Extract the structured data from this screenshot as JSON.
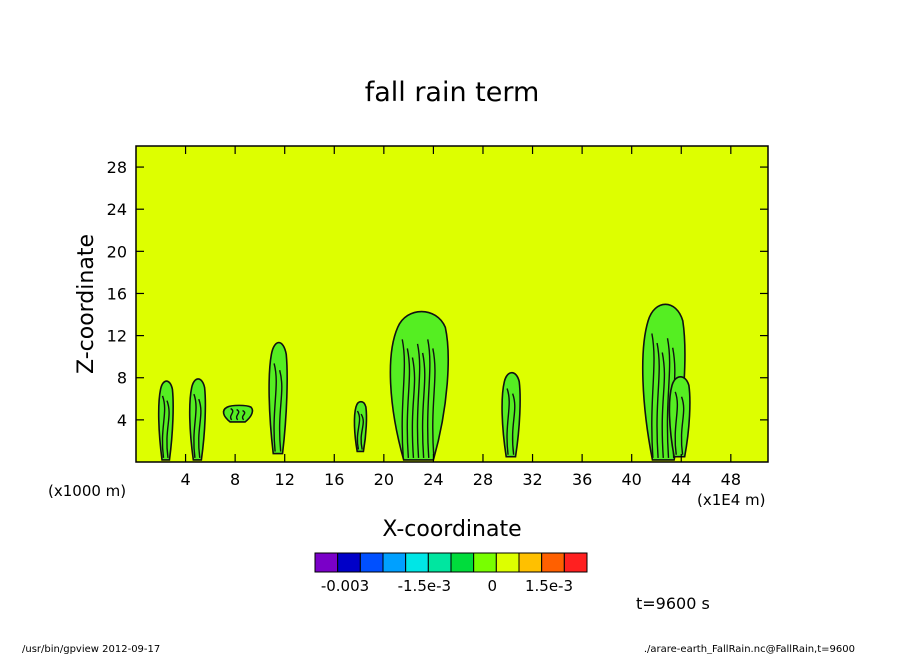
{
  "colors": {
    "plot_background": "#ddff00",
    "contour_fill": "#55ee22",
    "contour_line": "#111111"
  },
  "footer": {
    "left": "/usr/bin/gpview  2012-09-17",
    "right": "./arare-earth_FallRain.nc@FallRain,t=9600"
  },
  "time_label": "t=9600 s",
  "chart_data": {
    "type": "heatmap",
    "title": "fall rain term",
    "xlabel": "X-coordinate",
    "ylabel": "Z-coordinate",
    "x_unit_label": "(x1E4 m)",
    "y_unit_label": "(x1000 m)",
    "xlim": [
      0,
      51
    ],
    "ylim": [
      0,
      30
    ],
    "x_ticks": [
      4,
      8,
      12,
      16,
      20,
      24,
      28,
      32,
      36,
      40,
      44,
      48
    ],
    "y_ticks": [
      4,
      8,
      12,
      16,
      20,
      24,
      28
    ],
    "colorbar": {
      "colors": [
        "#7a00c8",
        "#0000c8",
        "#0050ff",
        "#00a0ff",
        "#00e6e6",
        "#00e6a0",
        "#00dc3c",
        "#78ff00",
        "#ddff00",
        "#ffc000",
        "#ff6000",
        "#ff2020"
      ],
      "labels": [
        "-0.003",
        "-1.5e-3",
        "0",
        "1.5e-3"
      ]
    },
    "regions": [
      {
        "name": "cell-x2",
        "x": [
          1.8,
          3.0
        ],
        "z": [
          0.2,
          7.8
        ]
      },
      {
        "name": "cell-x5",
        "x": [
          4.3,
          5.6
        ],
        "z": [
          0.2,
          8.0
        ]
      },
      {
        "name": "cell-x8",
        "x": [
          7.0,
          9.4
        ],
        "z": [
          3.8,
          5.4
        ]
      },
      {
        "name": "cell-x11",
        "x": [
          10.7,
          12.2
        ],
        "z": [
          0.8,
          11.5
        ]
      },
      {
        "name": "cell-x18",
        "x": [
          17.6,
          18.6
        ],
        "z": [
          1.0,
          5.8
        ]
      },
      {
        "name": "cell-x22",
        "x": [
          20.4,
          25.2
        ],
        "z": [
          0.2,
          14.5
        ]
      },
      {
        "name": "cell-x30",
        "x": [
          29.5,
          31.0
        ],
        "z": [
          0.5,
          8.6
        ]
      },
      {
        "name": "cell-x42",
        "x": [
          40.8,
          44.3
        ],
        "z": [
          0.2,
          15.2
        ]
      },
      {
        "name": "cell-x44",
        "x": [
          43.0,
          44.7
        ],
        "z": [
          0.5,
          8.2
        ]
      }
    ]
  }
}
